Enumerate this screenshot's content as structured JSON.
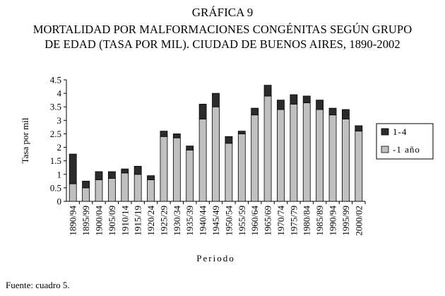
{
  "header": {
    "label": "GRÁFICA 9",
    "title_line1": "MORTALIDAD POR MALFORMACIONES CONGÉNITAS SEGÚN GRUPO",
    "title_line2": "DE EDAD (TASA POR MIL). CIUDAD DE BUENOS AIRES, 1890-2002"
  },
  "footer": {
    "source": "Fuente: cuadro 5."
  },
  "chart_data": {
    "type": "bar",
    "stacked": true,
    "xlabel": "Periodo",
    "ylabel": "Tasa por mil",
    "ylim": [
      0,
      4.5
    ],
    "yticks": [
      "0",
      "0.5",
      "1",
      "1.5",
      "2",
      "2.5",
      "3",
      "3.5",
      "4",
      "4.5"
    ],
    "grid": false,
    "legend_position": "right",
    "categories": [
      "1890/94",
      "1895/99",
      "1900/04",
      "1905/09",
      "1910/14",
      "1915/19",
      "1920/24",
      "1925/29",
      "1930/34",
      "1935/39",
      "1940/44",
      "1945/49",
      "1950/54",
      "1955/59",
      "1960/64",
      "1965/69",
      "1970/74",
      "1975/79",
      "1980/84",
      "1985/89",
      "1990/94",
      "1995/99",
      "2000/02"
    ],
    "series": [
      {
        "name": "-1 año",
        "color": "#c0c0c0",
        "values": [
          0.65,
          0.5,
          0.8,
          0.85,
          1.05,
          1.0,
          0.8,
          2.4,
          2.35,
          1.9,
          3.05,
          3.5,
          2.15,
          2.5,
          3.2,
          3.9,
          3.4,
          3.6,
          3.65,
          3.4,
          3.2,
          3.05,
          2.6
        ]
      },
      {
        "name": "1-4",
        "color": "#2b2b2b",
        "values": [
          1.1,
          0.25,
          0.3,
          0.25,
          0.15,
          0.3,
          0.15,
          0.2,
          0.15,
          0.15,
          0.55,
          0.5,
          0.25,
          0.1,
          0.25,
          0.4,
          0.35,
          0.35,
          0.25,
          0.35,
          0.25,
          0.35,
          0.2
        ]
      }
    ]
  }
}
